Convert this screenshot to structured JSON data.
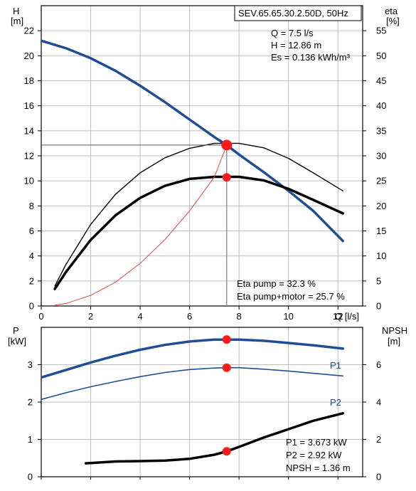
{
  "chart_data": [
    {
      "type": "line",
      "title": "SEV.65.65.30.2.50D, 50Hz",
      "xlabel": "Q [l/s]",
      "ylabel_left": "H",
      "ylabel_left_unit": "[m]",
      "ylabel_right": "eta",
      "ylabel_right_unit": "[%]",
      "xlim": [
        0,
        13
      ],
      "ylim_left": [
        0,
        24
      ],
      "ylim_right": [
        0,
        60
      ],
      "x_ticks": [
        0,
        2,
        4,
        6,
        8,
        10,
        12
      ],
      "y_ticks_left": [
        0,
        2,
        4,
        6,
        8,
        10,
        12,
        14,
        16,
        18,
        20,
        22
      ],
      "y_ticks_right": [
        0,
        5,
        10,
        15,
        20,
        25,
        30,
        35,
        40,
        45,
        50,
        55
      ],
      "grid": true,
      "series": [
        {
          "axis": "left",
          "color": "#1f4e96",
          "x": [
            0,
            1,
            2,
            3,
            4,
            5,
            6,
            7,
            7.5,
            8,
            9,
            10,
            11,
            12.2
          ],
          "y": [
            21.2,
            20.6,
            19.8,
            18.8,
            17.6,
            16.3,
            14.9,
            13.5,
            12.86,
            12.1,
            10.7,
            9.2,
            7.6,
            5.2
          ]
        },
        {
          "axis": "right",
          "color": "#000000",
          "x": [
            0.55,
            1,
            2,
            3,
            4,
            5,
            6,
            7,
            8,
            9,
            10,
            11,
            12.2
          ],
          "y": [
            4.0,
            8.3,
            16.3,
            22.3,
            26.6,
            29.6,
            31.5,
            32.5,
            32.5,
            31.6,
            29.5,
            26.6,
            23.0
          ]
        },
        {
          "axis": "right",
          "color": "#000000",
          "x": [
            0.55,
            1,
            2,
            3,
            4,
            5,
            6,
            7,
            8,
            9,
            10,
            11,
            12.2
          ],
          "y": [
            3.4,
            6.8,
            13.2,
            18.1,
            21.6,
            24.0,
            25.4,
            25.8,
            25.8,
            25.1,
            23.4,
            21.2,
            18.5
          ]
        },
        {
          "axis": "left",
          "color": "#e03030",
          "x": [
            0.55,
            1,
            2,
            3,
            4,
            5,
            6,
            7,
            7.5
          ],
          "y": [
            0.07,
            0.2,
            0.85,
            1.9,
            3.4,
            5.3,
            7.6,
            10.3,
            12.86
          ]
        }
      ],
      "operating_point": {
        "Q": 7.5,
        "H": 12.86,
        "eta_pump": 32.3,
        "eta_total": 25.7
      },
      "annotations": {
        "q": "Q = 7.5 l/s",
        "h": "H = 12.86 m",
        "es": "Es = 0.136 kWh/m³",
        "eta_pump": "Eta pump = 32.3 %",
        "eta_total": "Eta pump+motor = 25.7 %"
      }
    },
    {
      "type": "line",
      "ylabel_left": "P",
      "ylabel_left_unit": "[kW]",
      "ylabel_right": "NPSH",
      "ylabel_right_unit": "[m]",
      "xlim": [
        0,
        13
      ],
      "ylim_left": [
        0,
        4
      ],
      "ylim_right": [
        0,
        8
      ],
      "y_ticks_left": [
        0,
        1,
        2,
        3
      ],
      "y_ticks_right": [
        0,
        2,
        4,
        6
      ],
      "grid": true,
      "series": [
        {
          "name": "P1",
          "axis": "left",
          "color": "#1f4e96",
          "x": [
            0,
            1,
            2,
            3,
            4,
            5,
            6,
            7,
            7.5,
            8,
            9,
            10,
            11,
            12.2
          ],
          "y": [
            2.66,
            2.86,
            3.06,
            3.24,
            3.4,
            3.53,
            3.62,
            3.67,
            3.673,
            3.67,
            3.64,
            3.58,
            3.52,
            3.43
          ]
        },
        {
          "name": "P2",
          "axis": "left",
          "color": "#1f4e96",
          "x": [
            0,
            1,
            2,
            3,
            4,
            5,
            6,
            7,
            7.5,
            8,
            9,
            10,
            11,
            12.2
          ],
          "y": [
            2.07,
            2.25,
            2.41,
            2.55,
            2.68,
            2.79,
            2.87,
            2.91,
            2.92,
            2.92,
            2.88,
            2.83,
            2.77,
            2.7
          ]
        },
        {
          "name": "NPSH",
          "axis": "right",
          "color": "#000000",
          "x": [
            1.8,
            3,
            4,
            5,
            6,
            7,
            7.5,
            8,
            9,
            10,
            11,
            12.2
          ],
          "y": [
            0.72,
            0.82,
            0.84,
            0.87,
            0.96,
            1.18,
            1.36,
            1.6,
            2.1,
            2.55,
            3.0,
            3.4
          ]
        }
      ],
      "annotations": {
        "p1": "P1 = 3.673 kW",
        "p2": "P2 = 2.92 kW",
        "npsh": "NPSH = 1.36 m"
      }
    }
  ]
}
